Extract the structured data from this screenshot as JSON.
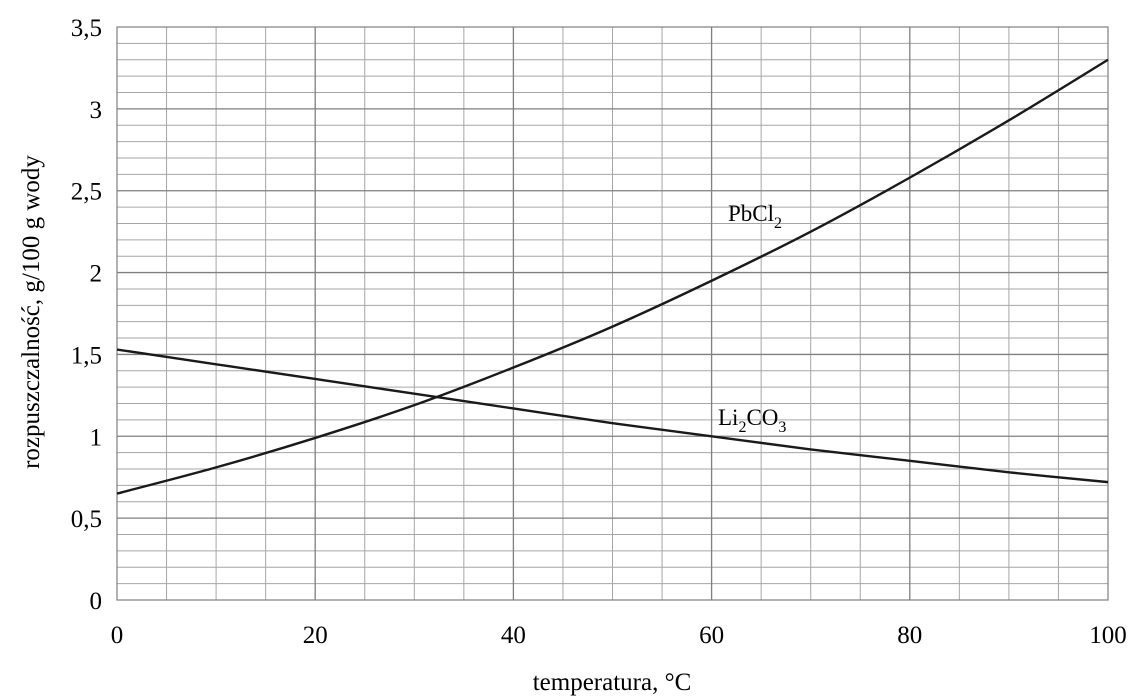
{
  "chart_data": {
    "type": "line",
    "title": "",
    "xlabel": "temperatura, °C",
    "ylabel": "rozpuszczalność, g/100 g wody",
    "xlim": [
      0,
      100
    ],
    "ylim": [
      0,
      3.5
    ],
    "x_ticks": [
      "0",
      "20",
      "40",
      "60",
      "80",
      "100"
    ],
    "y_ticks": [
      "0",
      "0,5",
      "1",
      "1,5",
      "2",
      "2,5",
      "3",
      "3,5"
    ],
    "grid": true,
    "x": [
      0,
      10,
      20,
      30,
      40,
      50,
      60,
      70,
      80,
      90,
      100
    ],
    "series": [
      {
        "name": "PbCl2",
        "label_main": "PbCl",
        "label_sub": "2",
        "values": [
          0.65,
          0.81,
          0.99,
          1.19,
          1.42,
          1.67,
          1.95,
          2.25,
          2.58,
          2.93,
          3.3
        ]
      },
      {
        "name": "Li2CO3",
        "label_parts": [
          "Li",
          "2",
          "CO",
          "3"
        ],
        "values": [
          1.53,
          1.44,
          1.35,
          1.26,
          1.17,
          1.08,
          1.0,
          0.92,
          0.85,
          0.78,
          0.72
        ]
      }
    ]
  }
}
